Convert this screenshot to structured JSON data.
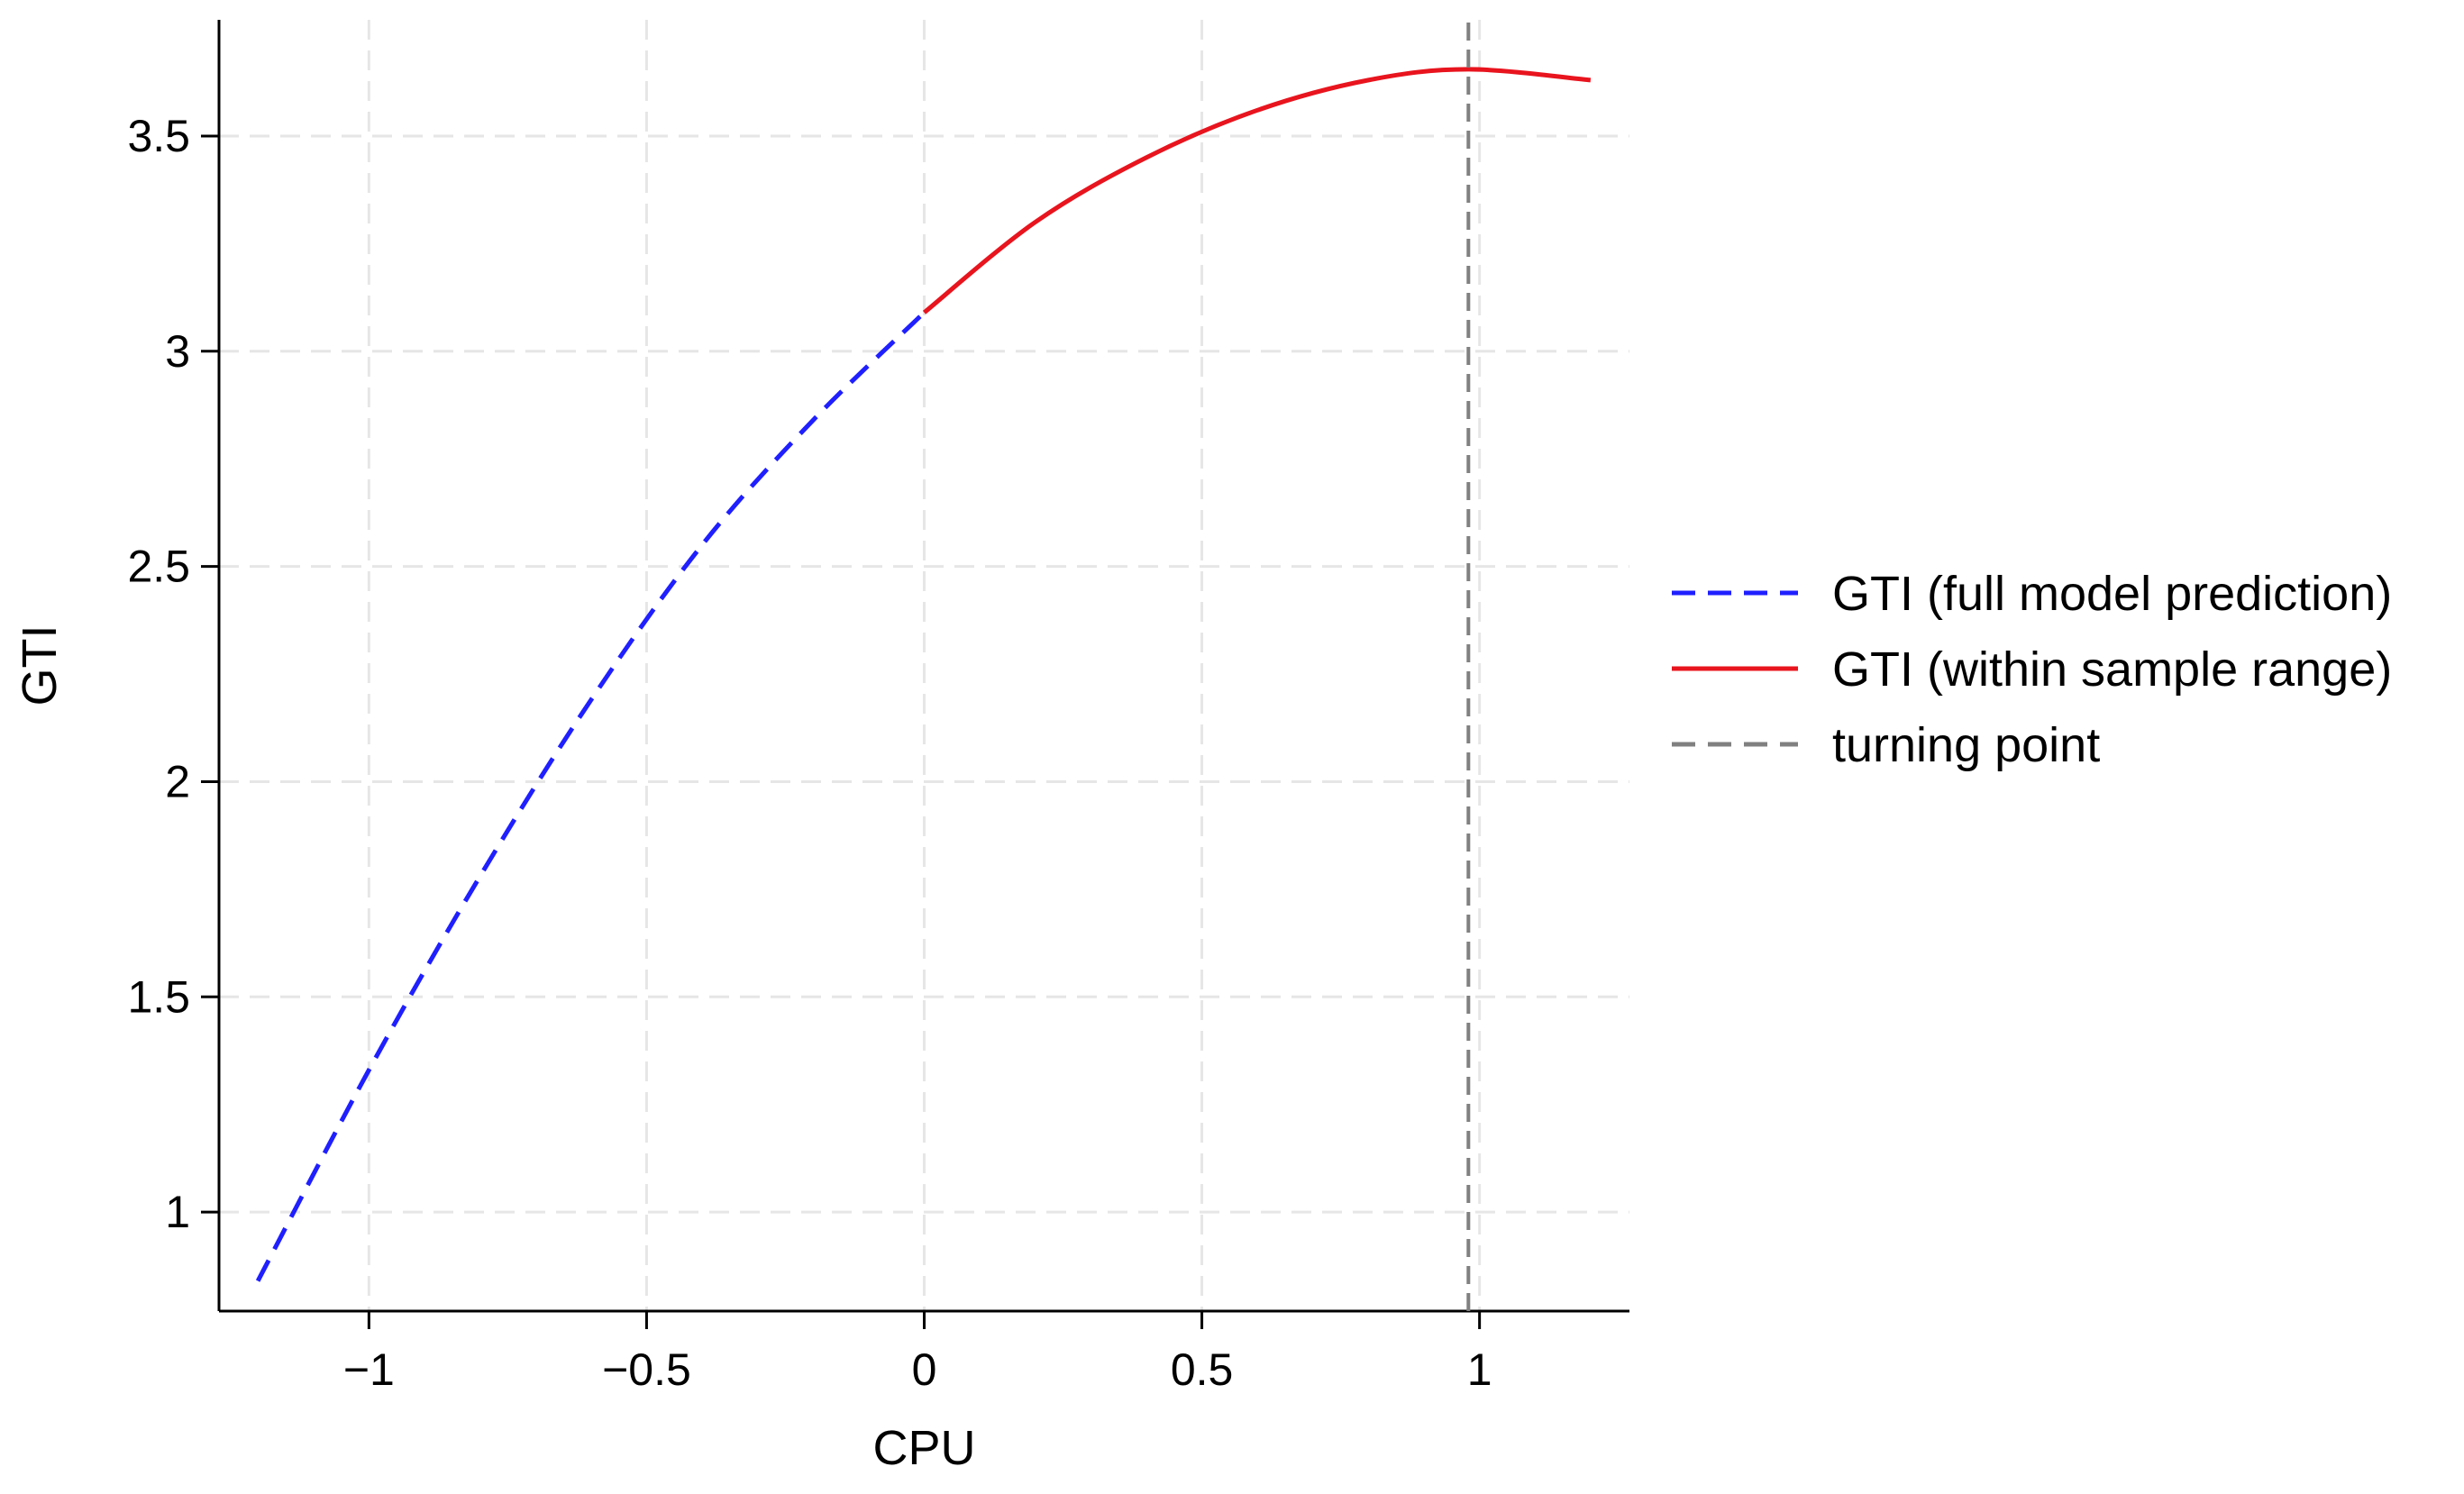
{
  "chart_data": {
    "type": "line",
    "title": "",
    "xlabel": "CPU",
    "ylabel": "GTI",
    "xlim": [
      -1.27,
      1.27
    ],
    "ylim": [
      0.77,
      3.77
    ],
    "x_ticks": [
      -1,
      -0.5,
      0,
      0.5,
      1
    ],
    "x_tick_labels": [
      "−1",
      "−0.5",
      "0",
      "0.5",
      "1"
    ],
    "y_ticks": [
      1,
      1.5,
      2,
      2.5,
      3,
      3.5
    ],
    "y_tick_labels": [
      "1",
      "1.5",
      "2",
      "2.5",
      "3",
      "3.5"
    ],
    "grid": true,
    "legend_position": "right",
    "series": [
      {
        "name": "GTI (full model prediction)",
        "style": "dashed",
        "color": "#1f1fff",
        "x": [
          -1.2,
          -1.0,
          -0.8,
          -0.6,
          -0.4,
          -0.2,
          0.0
        ],
        "y": [
          0.84,
          1.33,
          1.78,
          2.19,
          2.55,
          2.84,
          3.09
        ]
      },
      {
        "name": "GTI (within sample range)",
        "style": "solid",
        "color": "#e8141e",
        "x": [
          0.0,
          0.2,
          0.4,
          0.6,
          0.8,
          0.98,
          1.2
        ],
        "y": [
          3.09,
          3.3,
          3.45,
          3.56,
          3.63,
          3.655,
          3.63
        ]
      },
      {
        "name": "turning point",
        "style": "dashed",
        "color": "#808080",
        "x": [
          0.98,
          0.98
        ],
        "y": [
          0.77,
          3.77
        ]
      }
    ]
  }
}
